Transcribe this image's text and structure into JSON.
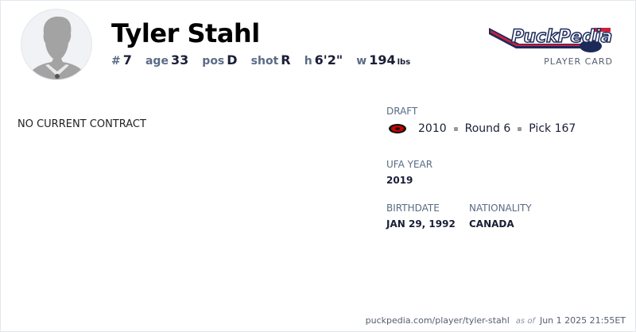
{
  "player": {
    "name": "Tyler Stahl",
    "number_label": "#",
    "number": "7",
    "age_label": "age",
    "age": "33",
    "pos_label": "pos",
    "pos": "D",
    "shot_label": "shot",
    "shot": "R",
    "height_label": "h",
    "height": "6'2\"",
    "weight_label": "w",
    "weight": "194",
    "weight_unit": "lbs"
  },
  "brand": {
    "logo_text": "PuckPedia",
    "subtitle": "PLAYER CARD",
    "colors": {
      "navy": "#1c2a5a",
      "red": "#d21f3c"
    }
  },
  "contract": {
    "status": "NO CURRENT CONTRACT"
  },
  "draft": {
    "label": "DRAFT",
    "team_icon": "carolina-hurricanes-logo",
    "year": "2010",
    "round": "Round 6",
    "pick": "Pick 167"
  },
  "ufa": {
    "label": "UFA YEAR",
    "value": "2019"
  },
  "birthdate": {
    "label": "BIRTHDATE",
    "value": "JAN 29, 1992"
  },
  "nationality": {
    "label": "NATIONALITY",
    "value": "CANADA"
  },
  "footer": {
    "url": "puckpedia.com/player/tyler-stahl",
    "as_of_label": "as of",
    "timestamp": "Jun 1 2025 21:55ET"
  }
}
